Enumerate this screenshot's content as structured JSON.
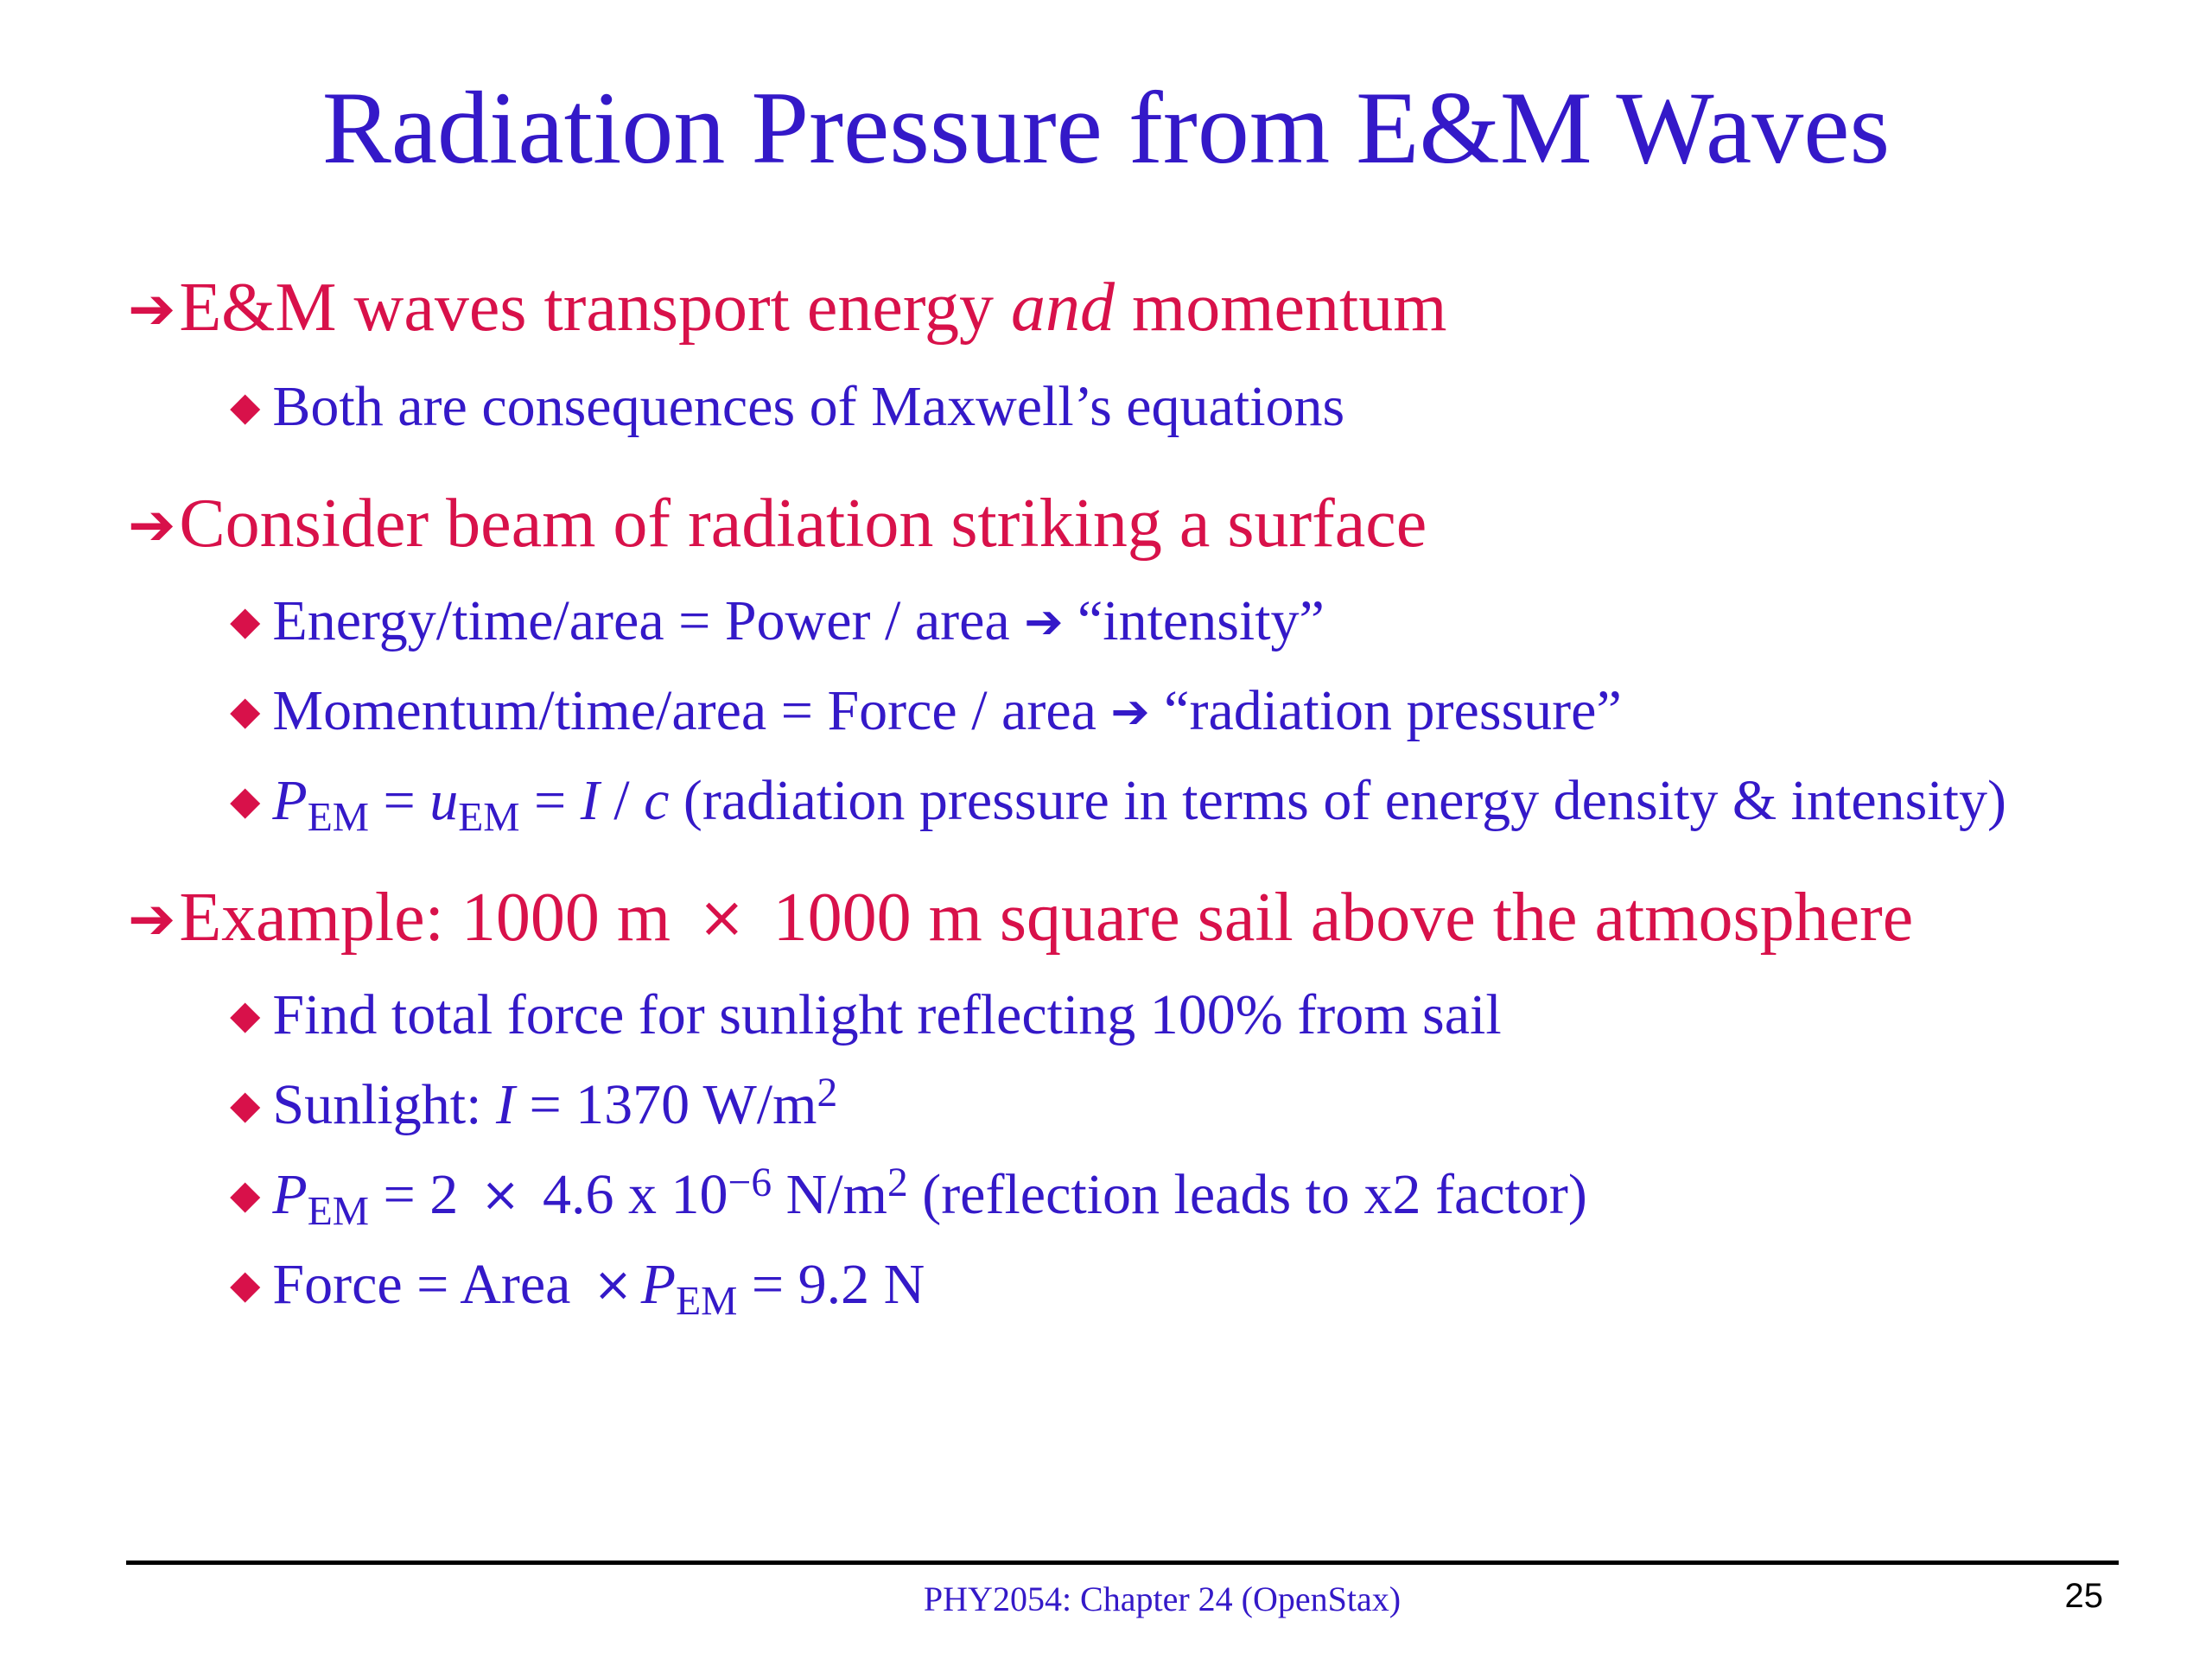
{
  "slide": {
    "title": "Radiation Pressure from E&M Waves",
    "icons": {
      "main_bullet": "right-arrow-icon",
      "sub_bullet": "diamond-icon",
      "inline_arrow": "right-arrow-icon"
    },
    "colors": {
      "title": "#3419c8",
      "main_text": "#d8114a",
      "sub_text": "#3419c8",
      "bullet": "#d8114a"
    },
    "b1": {
      "pre": "E&M waves transport energy ",
      "em": "and",
      "post": " momentum",
      "s1": "Both are consequences of Maxwell’s equations"
    },
    "b2": {
      "text": "Consider beam of radiation striking a surface",
      "s1": {
        "pre": "Energy/time/area = Power / area ",
        "post": " “intensity”"
      },
      "s2": {
        "pre": "Momentum/time/area = Force / area ",
        "post": " “radiation pressure”"
      },
      "s3": {
        "p": "P",
        "sub1": "EM",
        "eq1": " = ",
        "u": "u",
        "sub2": "EM",
        "eq2": " = ",
        "i": "I",
        "slash": " / ",
        "c": "c",
        "post": " (radiation pressure in terms of energy density & intensity)"
      }
    },
    "b3": {
      "pre": "Example: 1000 m ",
      "times": "×",
      "post": " 1000 m square sail above the atmosphere",
      "s1": "Find total force for sunlight reflecting 100% from sail",
      "s2": {
        "pre": "Sunlight: ",
        "i": "I",
        "mid": " = 1370 W/m",
        "sup": "2"
      },
      "s3": {
        "p": "P",
        "sub": "EM",
        "mid": " = 2 ",
        "times": "×",
        "val": " 4.6 x 10",
        "exp": "−6",
        "unit": " N/m",
        "sup": "2",
        "post": " (reflection leads to x2 factor)"
      },
      "s4": {
        "pre": "Force = Area ",
        "times": "×",
        "p": "P",
        "sub": "EM",
        "post": " = 9.2 N"
      }
    },
    "footer": "PHY2054: Chapter 24 (OpenStax)",
    "page_number": "25"
  }
}
